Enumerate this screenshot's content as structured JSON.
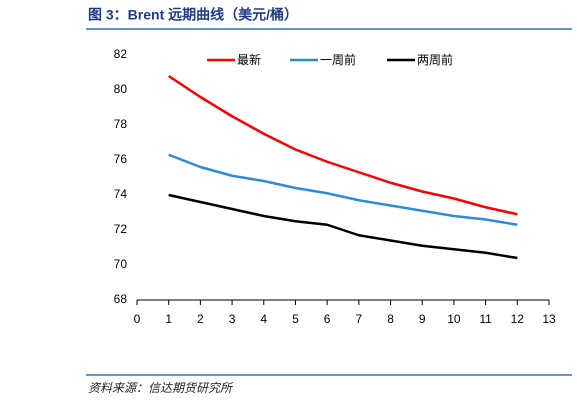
{
  "chart_data": {
    "type": "line",
    "title": "图 3：Brent 远期曲线（美元/桶）",
    "source": "资料来源：信达期货研究所",
    "x": [
      1,
      2,
      3,
      4,
      5,
      6,
      7,
      8,
      9,
      10,
      11,
      12
    ],
    "series": [
      {
        "name": "最新",
        "color": "#ff0000",
        "values": [
          80.8,
          79.6,
          78.5,
          77.5,
          76.6,
          75.9,
          75.3,
          74.7,
          74.2,
          73.8,
          73.3,
          72.9
        ]
      },
      {
        "name": "一周前",
        "color": "#2e8bd6",
        "values": [
          76.3,
          75.6,
          75.1,
          74.8,
          74.4,
          74.1,
          73.7,
          73.4,
          73.1,
          72.8,
          72.6,
          72.3
        ]
      },
      {
        "name": "两周前",
        "color": "#000000",
        "values": [
          74.0,
          73.6,
          73.2,
          72.8,
          72.5,
          72.3,
          71.7,
          71.4,
          71.1,
          70.9,
          70.7,
          70.4
        ]
      }
    ],
    "xlim": [
      0,
      13
    ],
    "xticks": [
      0,
      1,
      2,
      3,
      4,
      5,
      6,
      7,
      8,
      9,
      10,
      11,
      12,
      13
    ],
    "ylim": [
      68,
      82
    ],
    "yticks": [
      68,
      70,
      72,
      74,
      76,
      78,
      80,
      82
    ]
  }
}
